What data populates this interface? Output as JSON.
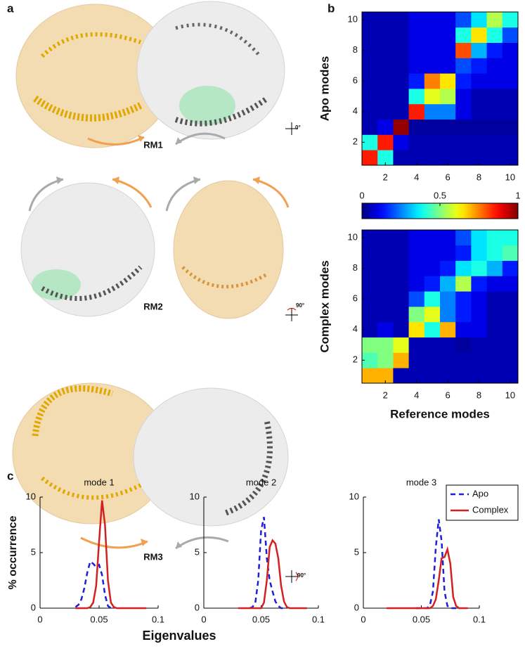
{
  "annotations": {
    "panel_labels": [
      "a",
      "b",
      "c"
    ],
    "rm_labels": [
      "RM1",
      "RM2",
      "RM3"
    ],
    "rotations": [
      "0°",
      "90°",
      "90°"
    ]
  },
  "chart_data": [
    {
      "type": "heatmap",
      "ylabel": "Apo modes",
      "colormap": "jet",
      "clim": [
        0,
        1
      ],
      "xlim": [
        0.5,
        10.5
      ],
      "ylim": [
        0.5,
        10.5
      ],
      "xticks": [
        2,
        4,
        6,
        8,
        10
      ],
      "yticks": [
        2,
        4,
        6,
        8,
        10
      ],
      "values": [
        [
          0.85,
          0.4,
          0.05,
          0.05,
          0.05,
          0.05,
          0.05,
          0.05,
          0.05,
          0.05
        ],
        [
          0.4,
          0.85,
          0.1,
          0.05,
          0.05,
          0.05,
          0.05,
          0.05,
          0.05,
          0.05
        ],
        [
          0.05,
          0.1,
          0.98,
          0.03,
          0.03,
          0.03,
          0.03,
          0.03,
          0.03,
          0.03
        ],
        [
          0.05,
          0.05,
          0.05,
          0.85,
          0.25,
          0.25,
          0.1,
          0.05,
          0.05,
          0.05
        ],
        [
          0.05,
          0.05,
          0.05,
          0.4,
          0.6,
          0.55,
          0.1,
          0.05,
          0.05,
          0.05
        ],
        [
          0.05,
          0.05,
          0.05,
          0.15,
          0.75,
          0.65,
          0.15,
          0.1,
          0.1,
          0.1
        ],
        [
          0.05,
          0.05,
          0.05,
          0.1,
          0.1,
          0.1,
          0.2,
          0.15,
          0.1,
          0.1
        ],
        [
          0.05,
          0.05,
          0.05,
          0.1,
          0.1,
          0.1,
          0.8,
          0.3,
          0.15,
          0.1
        ],
        [
          0.05,
          0.05,
          0.05,
          0.1,
          0.1,
          0.1,
          0.4,
          0.65,
          0.4,
          0.2
        ],
        [
          0.05,
          0.05,
          0.05,
          0.1,
          0.1,
          0.1,
          0.2,
          0.35,
          0.55,
          0.4
        ]
      ]
    },
    {
      "type": "colorbar",
      "colormap": "jet",
      "lim": [
        0,
        1
      ],
      "ticks": [
        0,
        0.5,
        1
      ]
    },
    {
      "type": "heatmap",
      "ylabel": "Complex modes",
      "xlabel": "Reference modes",
      "colormap": "jet",
      "clim": [
        0,
        1
      ],
      "xlim": [
        0.5,
        10.5
      ],
      "ylim": [
        0.5,
        10.5
      ],
      "xticks": [
        2,
        4,
        6,
        8,
        10
      ],
      "yticks": [
        2,
        4,
        6,
        8,
        10
      ],
      "values": [
        [
          0.7,
          0.7,
          0.05,
          0.05,
          0.05,
          0.05,
          0.05,
          0.05,
          0.05,
          0.05
        ],
        [
          0.45,
          0.5,
          0.7,
          0.05,
          0.05,
          0.05,
          0.05,
          0.05,
          0.05,
          0.05
        ],
        [
          0.5,
          0.5,
          0.6,
          0.05,
          0.05,
          0.05,
          0.03,
          0.05,
          0.05,
          0.05
        ],
        [
          0.05,
          0.1,
          0.05,
          0.65,
          0.4,
          0.7,
          0.1,
          0.1,
          0.05,
          0.05
        ],
        [
          0.05,
          0.05,
          0.05,
          0.5,
          0.6,
          0.25,
          0.15,
          0.1,
          0.05,
          0.05
        ],
        [
          0.05,
          0.05,
          0.05,
          0.2,
          0.4,
          0.25,
          0.15,
          0.1,
          0.05,
          0.05
        ],
        [
          0.05,
          0.05,
          0.05,
          0.1,
          0.15,
          0.3,
          0.55,
          0.15,
          0.1,
          0.1
        ],
        [
          0.05,
          0.05,
          0.05,
          0.1,
          0.1,
          0.15,
          0.35,
          0.4,
          0.3,
          0.15
        ],
        [
          0.05,
          0.05,
          0.05,
          0.1,
          0.1,
          0.1,
          0.15,
          0.35,
          0.4,
          0.45
        ],
        [
          0.05,
          0.05,
          0.05,
          0.1,
          0.1,
          0.1,
          0.2,
          0.35,
          0.4,
          0.4
        ]
      ]
    },
    {
      "type": "line",
      "title": "mode 1",
      "ylabel": "% occurrence",
      "xlim": [
        0,
        0.1
      ],
      "ylim": [
        0,
        10
      ],
      "xticks": [
        0,
        0.05,
        0.1
      ],
      "yticks": [
        0,
        5,
        10
      ],
      "x": [
        0.02,
        0.0225,
        0.025,
        0.0275,
        0.03,
        0.0325,
        0.035,
        0.0375,
        0.04,
        0.0425,
        0.045,
        0.0475,
        0.05,
        0.0525,
        0.055,
        0.0575,
        0.06,
        0.0625,
        0.065,
        0.0675,
        0.07,
        0.0725,
        0.075,
        0.0775,
        0.08,
        0.0825,
        0.085,
        0.0875,
        0.09
      ],
      "series": [
        {
          "color": "#1f1fd6",
          "linestyle": "dashed",
          "values": [
            null,
            null,
            null,
            null,
            0.1,
            0.3,
            0.8,
            1.8,
            3.2,
            4.2,
            4.0,
            3.7,
            3.9,
            3.0,
            1.2,
            0.2,
            0,
            null,
            null,
            null,
            null,
            null,
            null,
            null,
            null,
            null,
            null,
            null,
            null
          ]
        },
        {
          "color": "#d42020",
          "linestyle": "solid",
          "values": [
            null,
            null,
            null,
            null,
            0,
            0,
            0,
            0,
            0,
            0.1,
            0.5,
            2.0,
            6.0,
            9.7,
            7.5,
            2.5,
            0.5,
            0.1,
            0,
            0,
            0,
            0,
            0,
            0,
            0,
            0,
            0,
            0,
            0
          ]
        }
      ]
    },
    {
      "type": "line",
      "title": "mode 2",
      "xlabel": "Eigenvalues",
      "xlim": [
        0,
        0.1
      ],
      "ylim": [
        0,
        10
      ],
      "xticks": [
        0,
        0.05,
        0.1
      ],
      "yticks": [
        0,
        5,
        10
      ],
      "x": [
        0.02,
        0.0225,
        0.025,
        0.0275,
        0.03,
        0.0325,
        0.035,
        0.0375,
        0.04,
        0.0425,
        0.045,
        0.0475,
        0.05,
        0.0525,
        0.055,
        0.0575,
        0.06,
        0.0625,
        0.065,
        0.0675,
        0.07,
        0.0725,
        0.075,
        0.0775,
        0.08,
        0.0825,
        0.085,
        0.0875,
        0.09
      ],
      "series": [
        {
          "color": "#1f1fd6",
          "linestyle": "dashed",
          "values": [
            null,
            null,
            null,
            null,
            null,
            null,
            null,
            null,
            0,
            0.1,
            0.5,
            2.5,
            7.0,
            8.2,
            4.5,
            2.5,
            1.5,
            0.6,
            0.2,
            0,
            0,
            null,
            null,
            null,
            null,
            null,
            null,
            null,
            null
          ]
        },
        {
          "color": "#d42020",
          "linestyle": "solid",
          "values": [
            null,
            null,
            null,
            null,
            0,
            0,
            0,
            0,
            0,
            0,
            0,
            0,
            0,
            0.5,
            2.5,
            5.5,
            6.1,
            5.8,
            4.5,
            2.0,
            0.6,
            0.1,
            0,
            0,
            0,
            0,
            0,
            0,
            0
          ]
        }
      ]
    },
    {
      "type": "line",
      "title": "mode 3",
      "legend": "upper right",
      "xlim": [
        0,
        0.1
      ],
      "ylim": [
        0,
        10
      ],
      "xticks": [
        0,
        0.05,
        0.1
      ],
      "yticks": [
        0,
        5,
        10
      ],
      "x": [
        0.02,
        0.0225,
        0.025,
        0.0275,
        0.03,
        0.0325,
        0.035,
        0.0375,
        0.04,
        0.0425,
        0.045,
        0.0475,
        0.05,
        0.0525,
        0.055,
        0.0575,
        0.06,
        0.0625,
        0.065,
        0.0675,
        0.07,
        0.0725,
        0.075,
        0.0775,
        0.08,
        0.0825,
        0.085,
        0.0875,
        0.09
      ],
      "series": [
        {
          "name": "Apo",
          "color": "#1f1fd6",
          "linestyle": "dashed",
          "values": [
            null,
            null,
            null,
            null,
            null,
            null,
            null,
            null,
            null,
            null,
            0,
            0,
            0,
            0,
            0,
            0.3,
            1.5,
            5.5,
            8.0,
            6.0,
            1.5,
            0.2,
            0,
            0,
            0,
            null,
            null,
            null,
            null
          ]
        },
        {
          "name": "Complex",
          "color": "#d42020",
          "linestyle": "solid",
          "values": [
            0,
            0,
            0,
            0,
            0,
            0,
            0,
            0,
            0,
            0,
            0,
            0,
            0,
            0,
            0,
            0,
            0.2,
            0.8,
            2.5,
            4.5,
            4.6,
            5.3,
            4.0,
            1.0,
            0.2,
            0,
            0,
            0,
            0
          ]
        }
      ]
    }
  ]
}
